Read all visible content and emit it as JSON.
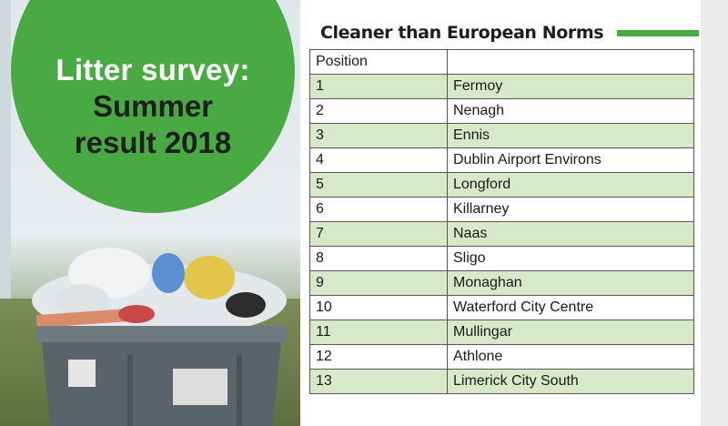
{
  "headline": {
    "line1": "Litter survey:",
    "line2": "Summer",
    "line3": "result 2018"
  },
  "table_title": "Cleaner than European Norms",
  "table": {
    "header": [
      "Position",
      ""
    ],
    "rows": [
      [
        "1",
        "Fermoy"
      ],
      [
        "2",
        "Nenagh"
      ],
      [
        "3",
        "Ennis"
      ],
      [
        "4",
        "Dublin Airport Environs"
      ],
      [
        "5",
        "Longford"
      ],
      [
        "6",
        "Killarney"
      ],
      [
        "7",
        "Naas"
      ],
      [
        "8",
        "Sligo"
      ],
      [
        "9",
        "Monaghan"
      ],
      [
        "10",
        "Waterford City Centre"
      ],
      [
        "11",
        "Mullingar"
      ],
      [
        "12",
        "Athlone"
      ],
      [
        "13",
        "Limerick City South"
      ]
    ]
  },
  "colors": {
    "accent": "#49a943",
    "row_fill": "#d6e9c9"
  }
}
